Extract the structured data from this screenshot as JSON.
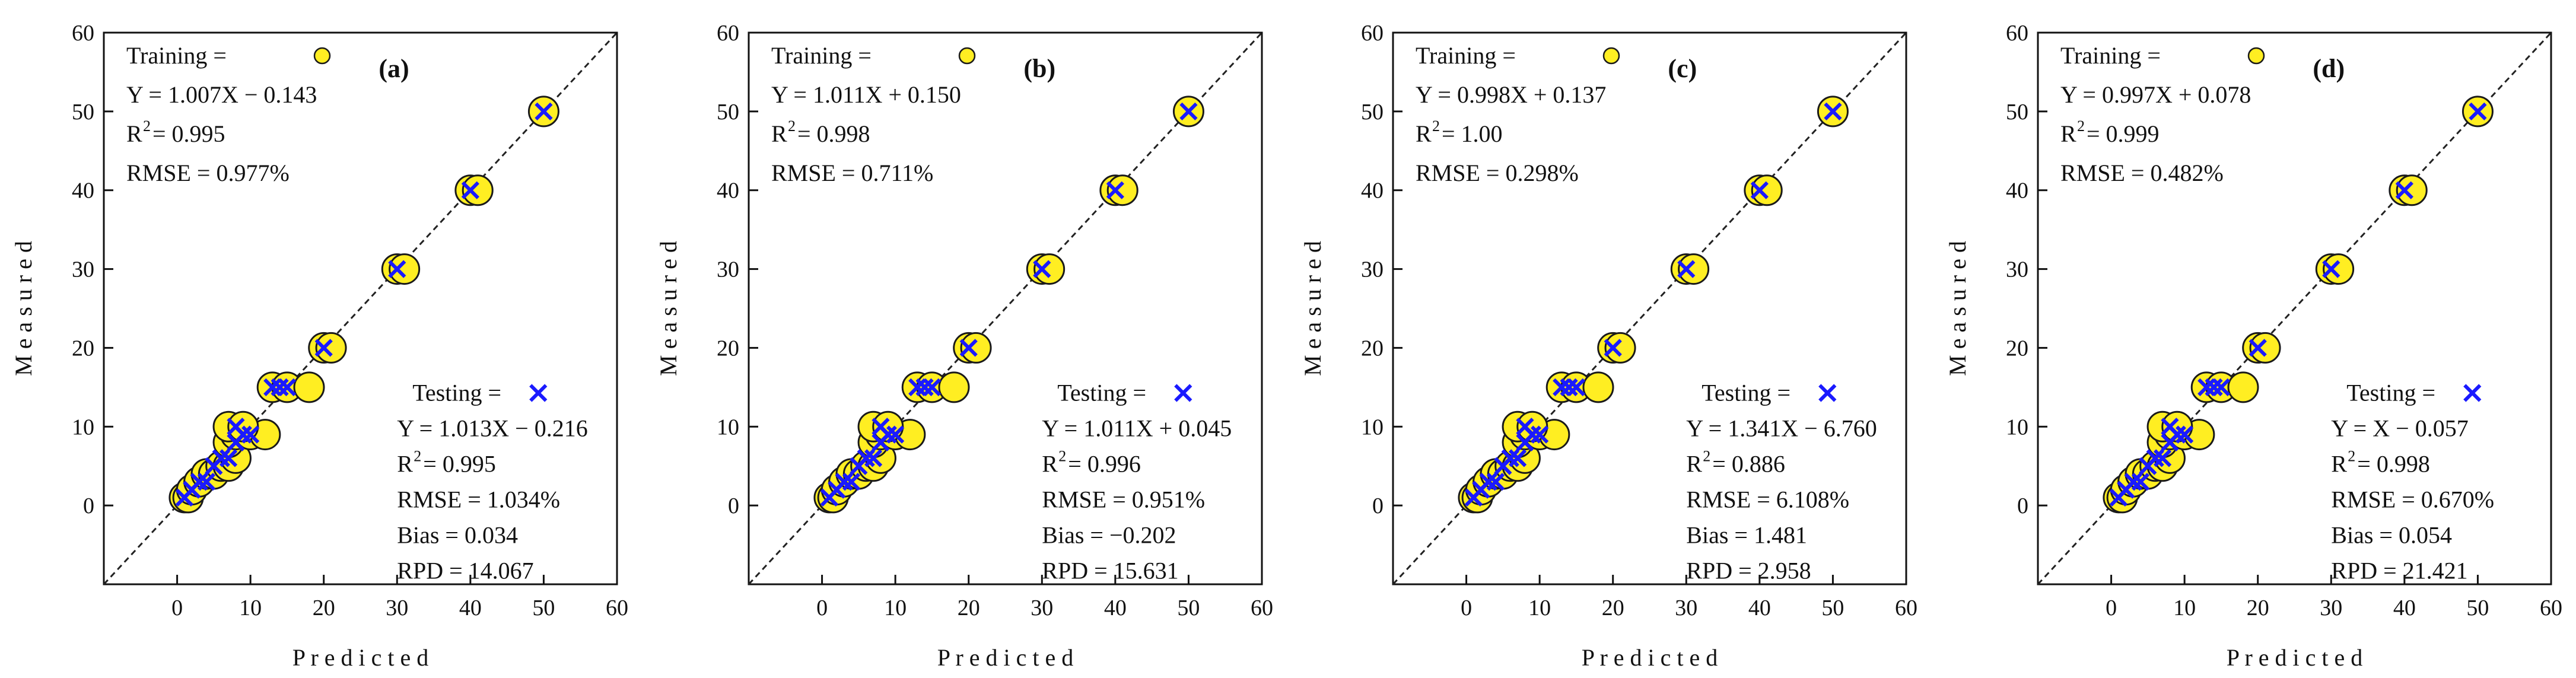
{
  "chart_data": [
    {
      "type": "scatter",
      "panel": "(a)",
      "xlabel": "P r e d i c t e d",
      "ylabel": "M e a s u r e d",
      "xlim": [
        -10,
        60
      ],
      "ylim": [
        -10,
        60
      ],
      "xticks": [
        0,
        10,
        20,
        30,
        40,
        50,
        60
      ],
      "yticks": [
        0,
        10,
        20,
        30,
        40,
        50,
        60
      ],
      "reference_line": "y = x",
      "training": {
        "legend": "Training =",
        "lines": [
          "Y = 1.007X − 0.143",
          "2 = 0.995",
          "RMSE = 0.977%"
        ],
        "points": [
          [
            1,
            1
          ],
          [
            1.5,
            1
          ],
          [
            2,
            2
          ],
          [
            3,
            3
          ],
          [
            4,
            4
          ],
          [
            5,
            4
          ],
          [
            6,
            5
          ],
          [
            7,
            5
          ],
          [
            8,
            6
          ],
          [
            7,
            8
          ],
          [
            8,
            9
          ],
          [
            10,
            9
          ],
          [
            12,
            9
          ],
          [
            7,
            10
          ],
          [
            9,
            10
          ],
          [
            13,
            15
          ],
          [
            15,
            15
          ],
          [
            18,
            15
          ],
          [
            20,
            20
          ],
          [
            21,
            20
          ],
          [
            30,
            30
          ],
          [
            31,
            30
          ],
          [
            40,
            40
          ],
          [
            41,
            40
          ],
          [
            50,
            50
          ]
        ]
      },
      "testing": {
        "legend": "Testing =",
        "lines": [
          "Y = 1.013X − 0.216",
          "2 = 0.995",
          "RMSE = 1.034%",
          "Bias = 0.034",
          "RPD = 14.067"
        ],
        "points": [
          [
            1,
            1
          ],
          [
            2,
            2
          ],
          [
            3,
            3
          ],
          [
            4,
            3
          ],
          [
            5,
            5
          ],
          [
            6,
            6
          ],
          [
            7,
            6
          ],
          [
            8,
            8
          ],
          [
            9,
            9
          ],
          [
            10,
            9
          ],
          [
            8,
            10
          ],
          [
            13,
            15
          ],
          [
            14,
            15
          ],
          [
            15,
            15
          ],
          [
            20,
            20
          ],
          [
            30,
            30
          ],
          [
            40,
            40
          ],
          [
            50,
            50
          ]
        ]
      }
    },
    {
      "type": "scatter",
      "panel": "(b)",
      "xlabel": "P r e d i c t e d",
      "ylabel": "M e a s u r e d",
      "xlim": [
        -10,
        60
      ],
      "ylim": [
        -10,
        60
      ],
      "xticks": [
        0,
        10,
        20,
        30,
        40,
        50,
        60
      ],
      "yticks": [
        0,
        10,
        20,
        30,
        40,
        50,
        60
      ],
      "reference_line": "y = x",
      "training": {
        "legend": "Training =",
        "lines": [
          "Y = 1.011X + 0.150",
          "2 = 0.998",
          "RMSE = 0.711%"
        ],
        "points": [
          [
            1,
            1
          ],
          [
            1.5,
            1
          ],
          [
            2,
            2
          ],
          [
            3,
            3
          ],
          [
            4,
            4
          ],
          [
            5,
            4
          ],
          [
            6,
            5
          ],
          [
            7,
            5
          ],
          [
            8,
            6
          ],
          [
            7,
            8
          ],
          [
            8,
            9
          ],
          [
            10,
            9
          ],
          [
            12,
            9
          ],
          [
            7,
            10
          ],
          [
            9,
            10
          ],
          [
            13,
            15
          ],
          [
            15,
            15
          ],
          [
            18,
            15
          ],
          [
            20,
            20
          ],
          [
            21,
            20
          ],
          [
            30,
            30
          ],
          [
            31,
            30
          ],
          [
            40,
            40
          ],
          [
            41,
            40
          ],
          [
            50,
            50
          ]
        ]
      },
      "testing": {
        "legend": "Testing =",
        "lines": [
          "Y = 1.011X + 0.045",
          "2 = 0.996",
          "RMSE = 0.951%",
          "Bias = −0.202",
          "RPD = 15.631"
        ],
        "points": [
          [
            1,
            1
          ],
          [
            2,
            2
          ],
          [
            3,
            3
          ],
          [
            4,
            3
          ],
          [
            5,
            5
          ],
          [
            6,
            6
          ],
          [
            7,
            6
          ],
          [
            8,
            8
          ],
          [
            9,
            9
          ],
          [
            10,
            9
          ],
          [
            8,
            10
          ],
          [
            13,
            15
          ],
          [
            14,
            15
          ],
          [
            15,
            15
          ],
          [
            20,
            20
          ],
          [
            30,
            30
          ],
          [
            40,
            40
          ],
          [
            50,
            50
          ]
        ]
      }
    },
    {
      "type": "scatter",
      "panel": "(c)",
      "xlabel": "P r e d i c t e d",
      "ylabel": "M e a s u r e d",
      "xlim": [
        -10,
        60
      ],
      "ylim": [
        -10,
        60
      ],
      "xticks": [
        0,
        10,
        20,
        30,
        40,
        50,
        60
      ],
      "yticks": [
        0,
        10,
        20,
        30,
        40,
        50,
        60
      ],
      "reference_line": "y = x",
      "training": {
        "legend": "Training =",
        "lines": [
          "Y = 0.998X + 0.137",
          "2 = 1.00",
          "RMSE = 0.298%"
        ],
        "points": [
          [
            1,
            1
          ],
          [
            1.5,
            1
          ],
          [
            2,
            2
          ],
          [
            3,
            3
          ],
          [
            4,
            4
          ],
          [
            5,
            4
          ],
          [
            6,
            5
          ],
          [
            7,
            5
          ],
          [
            8,
            6
          ],
          [
            7,
            8
          ],
          [
            8,
            9
          ],
          [
            10,
            9
          ],
          [
            12,
            9
          ],
          [
            7,
            10
          ],
          [
            9,
            10
          ],
          [
            13,
            15
          ],
          [
            15,
            15
          ],
          [
            18,
            15
          ],
          [
            20,
            20
          ],
          [
            21,
            20
          ],
          [
            30,
            30
          ],
          [
            31,
            30
          ],
          [
            40,
            40
          ],
          [
            41,
            40
          ],
          [
            50,
            50
          ]
        ]
      },
      "testing": {
        "legend": "Testing =",
        "lines": [
          "Y = 1.341X − 6.760",
          "2 = 0.886",
          "RMSE = 6.108%",
          "Bias = 1.481",
          "RPD = 2.958"
        ],
        "points": [
          [
            1,
            1
          ],
          [
            2,
            2
          ],
          [
            3,
            3
          ],
          [
            4,
            3
          ],
          [
            5,
            5
          ],
          [
            6,
            6
          ],
          [
            7,
            6
          ],
          [
            8,
            8
          ],
          [
            9,
            9
          ],
          [
            10,
            9
          ],
          [
            8,
            10
          ],
          [
            13,
            15
          ],
          [
            14,
            15
          ],
          [
            15,
            15
          ],
          [
            20,
            20
          ],
          [
            30,
            30
          ],
          [
            40,
            40
          ],
          [
            50,
            50
          ]
        ]
      }
    },
    {
      "type": "scatter",
      "panel": "(d)",
      "xlabel": "P r e d i c t e d",
      "ylabel": "M e a s u r e d",
      "xlim": [
        -10,
        60
      ],
      "ylim": [
        -10,
        60
      ],
      "xticks": [
        0,
        10,
        20,
        30,
        40,
        50,
        60
      ],
      "yticks": [
        0,
        10,
        20,
        30,
        40,
        50,
        60
      ],
      "reference_line": "y = x",
      "training": {
        "legend": "Training =",
        "lines": [
          "Y = 0.997X + 0.078",
          "2 = 0.999",
          "RMSE = 0.482%"
        ],
        "points": [
          [
            1,
            1
          ],
          [
            1.5,
            1
          ],
          [
            2,
            2
          ],
          [
            3,
            3
          ],
          [
            4,
            4
          ],
          [
            5,
            4
          ],
          [
            6,
            5
          ],
          [
            7,
            5
          ],
          [
            8,
            6
          ],
          [
            7,
            8
          ],
          [
            8,
            9
          ],
          [
            10,
            9
          ],
          [
            12,
            9
          ],
          [
            7,
            10
          ],
          [
            9,
            10
          ],
          [
            13,
            15
          ],
          [
            15,
            15
          ],
          [
            18,
            15
          ],
          [
            20,
            20
          ],
          [
            21,
            20
          ],
          [
            30,
            30
          ],
          [
            31,
            30
          ],
          [
            40,
            40
          ],
          [
            41,
            40
          ],
          [
            50,
            50
          ]
        ]
      },
      "testing": {
        "legend": "Testing =",
        "lines": [
          "Y = X − 0.057",
          "2 = 0.998",
          "RMSE = 0.670%",
          "Bias = 0.054",
          "RPD = 21.421"
        ],
        "points": [
          [
            1,
            1
          ],
          [
            2,
            2
          ],
          [
            3,
            3
          ],
          [
            4,
            3
          ],
          [
            5,
            5
          ],
          [
            6,
            6
          ],
          [
            7,
            6
          ],
          [
            8,
            8
          ],
          [
            9,
            9
          ],
          [
            10,
            9
          ],
          [
            8,
            10
          ],
          [
            13,
            15
          ],
          [
            14,
            15
          ],
          [
            15,
            15
          ],
          [
            20,
            20
          ],
          [
            30,
            30
          ],
          [
            40,
            40
          ],
          [
            50,
            50
          ]
        ]
      }
    }
  ],
  "colors": {
    "training_fill": "#ffee22",
    "training_stroke": "#1a1a1a",
    "testing_marker": "#1a1aff",
    "axis": "#111111"
  }
}
